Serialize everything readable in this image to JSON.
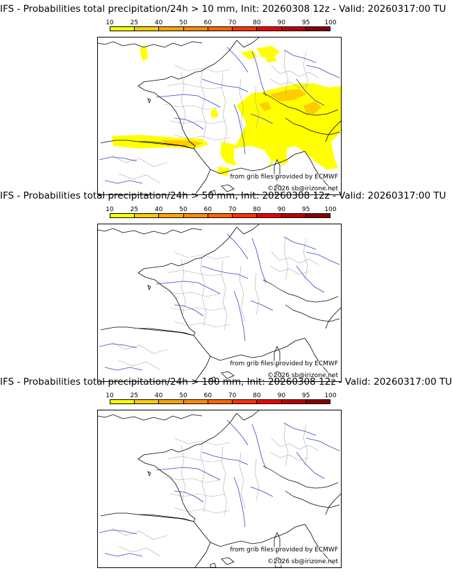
{
  "panels": [
    {
      "title": "IFS - Probabilities total precipitation/24h > 10 mm, Init: 20260308 12z - Valid: 20260317:00 TU",
      "coverage": "high",
      "credit_grib": "from grib files provided by ECMWF",
      "credit_copy": "©2026 sb@irizone.net"
    },
    {
      "title": "IFS - Probabilities total precipitation/24h > 50 mm, Init: 20260308 12z - Valid: 20260317:00 TU",
      "coverage": "none",
      "credit_grib": "from grib files provided by ECMWF",
      "credit_copy": "©2026 sb@irizone.net"
    },
    {
      "title": "IFS - Probabilities total precipitation/24h > 100 mm, Init: 20260308 12z - Valid: 20260317:00 TU",
      "coverage": "none",
      "credit_grib": "from grib files provided by ECMWF",
      "credit_copy": "©2026 sb@irizone.net"
    }
  ],
  "colorbar": {
    "ticks": [
      "10",
      "25",
      "40",
      "50",
      "60",
      "70",
      "80",
      "90",
      "95",
      "100"
    ],
    "colors": [
      "#ffff00",
      "#ffcc00",
      "#ffa500",
      "#ff8c00",
      "#ff6600",
      "#ff3300",
      "#ee0000",
      "#bb0000",
      "#880000"
    ]
  },
  "map_colors": {
    "coast": "#000000",
    "rivers": "#3344cc",
    "admin": "#aaaaaa",
    "land": "#ffffff"
  }
}
